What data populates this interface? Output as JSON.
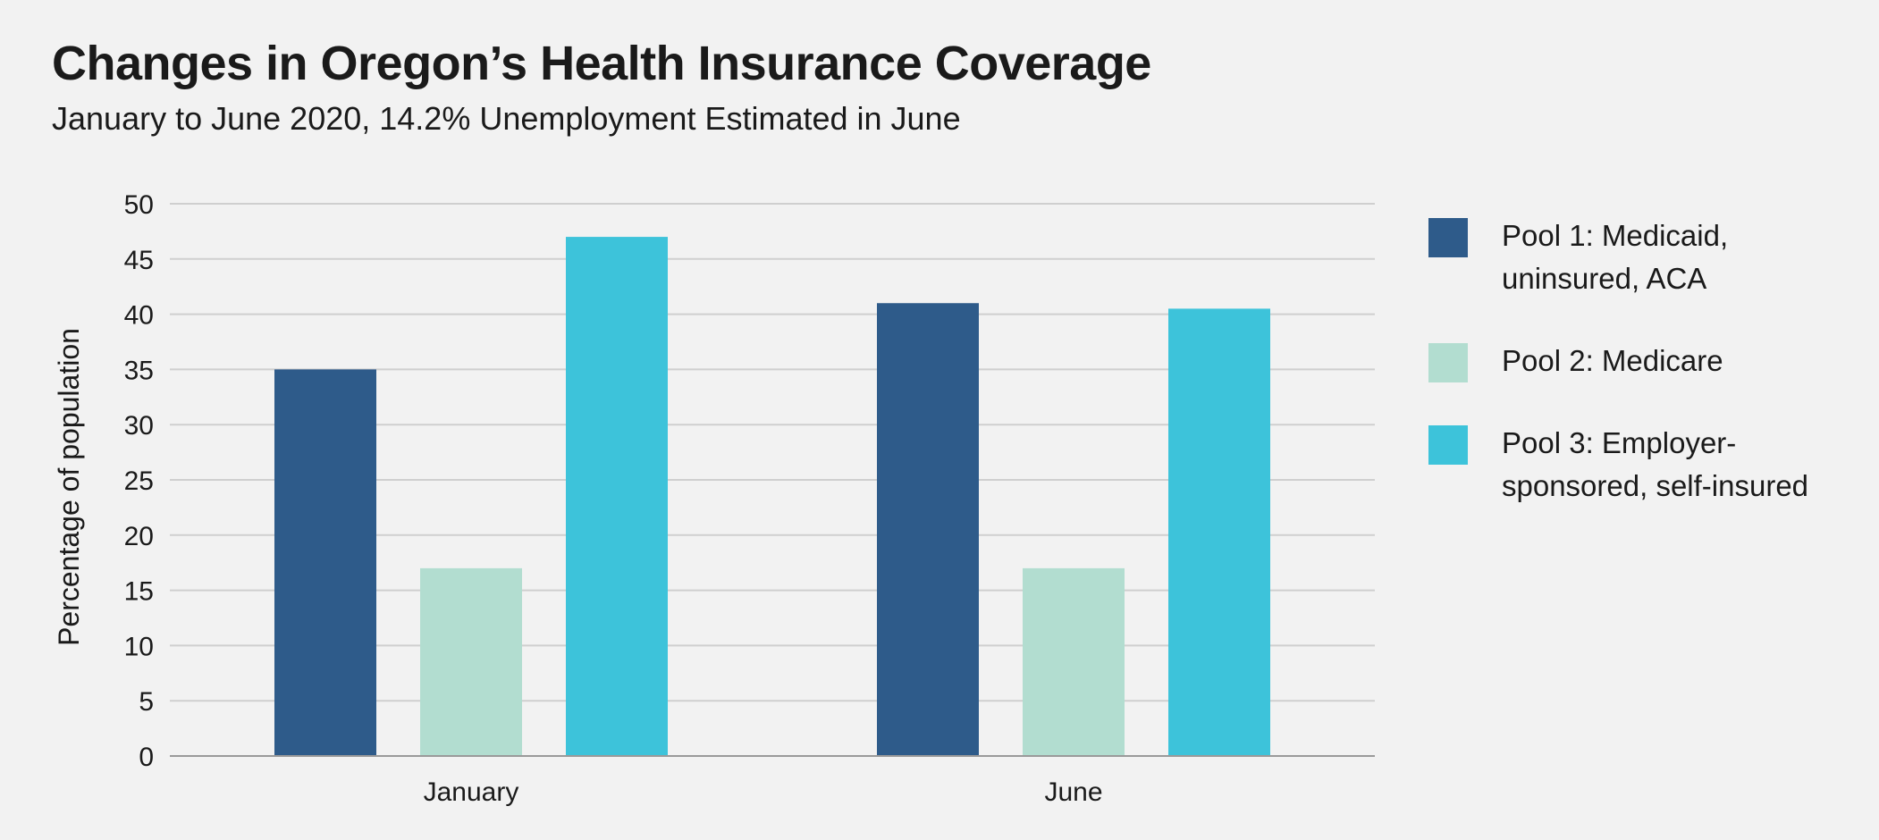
{
  "title": "Changes in Oregon’s Health Insurance Coverage",
  "subtitle": "January to June 2020, 14.2% Unemployment Estimated in June",
  "colors": {
    "background": "#f2f2f2",
    "gridline": "#cfcfcf",
    "axis": "#9a9a9a",
    "pool1": "#2e5b8a",
    "pool2": "#b2ddd0",
    "pool3": "#3dc3da"
  },
  "chart_data": {
    "type": "bar",
    "title": "Changes in Oregon’s Health Insurance Coverage",
    "subtitle": "January to June 2020, 14.2% Unemployment Estimated in June",
    "xlabel": "",
    "ylabel": "Percentage of population",
    "categories": [
      "January",
      "June"
    ],
    "series": [
      {
        "name": "Pool 1: Medicaid, uninsured, ACA",
        "values": [
          35,
          41
        ],
        "color": "#2e5b8a"
      },
      {
        "name": "Pool 2: Medicare",
        "values": [
          17,
          17
        ],
        "color": "#b2ddd0"
      },
      {
        "name": "Pool 3: Employer-sponsored, self-insured",
        "values": [
          47,
          40.5
        ],
        "color": "#3dc3da"
      }
    ],
    "ylim": [
      0,
      50
    ],
    "yticks": [
      0,
      5,
      10,
      15,
      20,
      25,
      30,
      35,
      40,
      45,
      50
    ],
    "grid": true,
    "legend_position": "right"
  },
  "legend": [
    {
      "label_lines": [
        "Pool 1: Medicaid,",
        "uninsured, ACA"
      ],
      "color": "#2e5b8a"
    },
    {
      "label_lines": [
        "Pool 2: Medicare"
      ],
      "color": "#b2ddd0"
    },
    {
      "label_lines": [
        "Pool 3: Employer-",
        "sponsored, self-insured"
      ],
      "color": "#3dc3da"
    }
  ]
}
